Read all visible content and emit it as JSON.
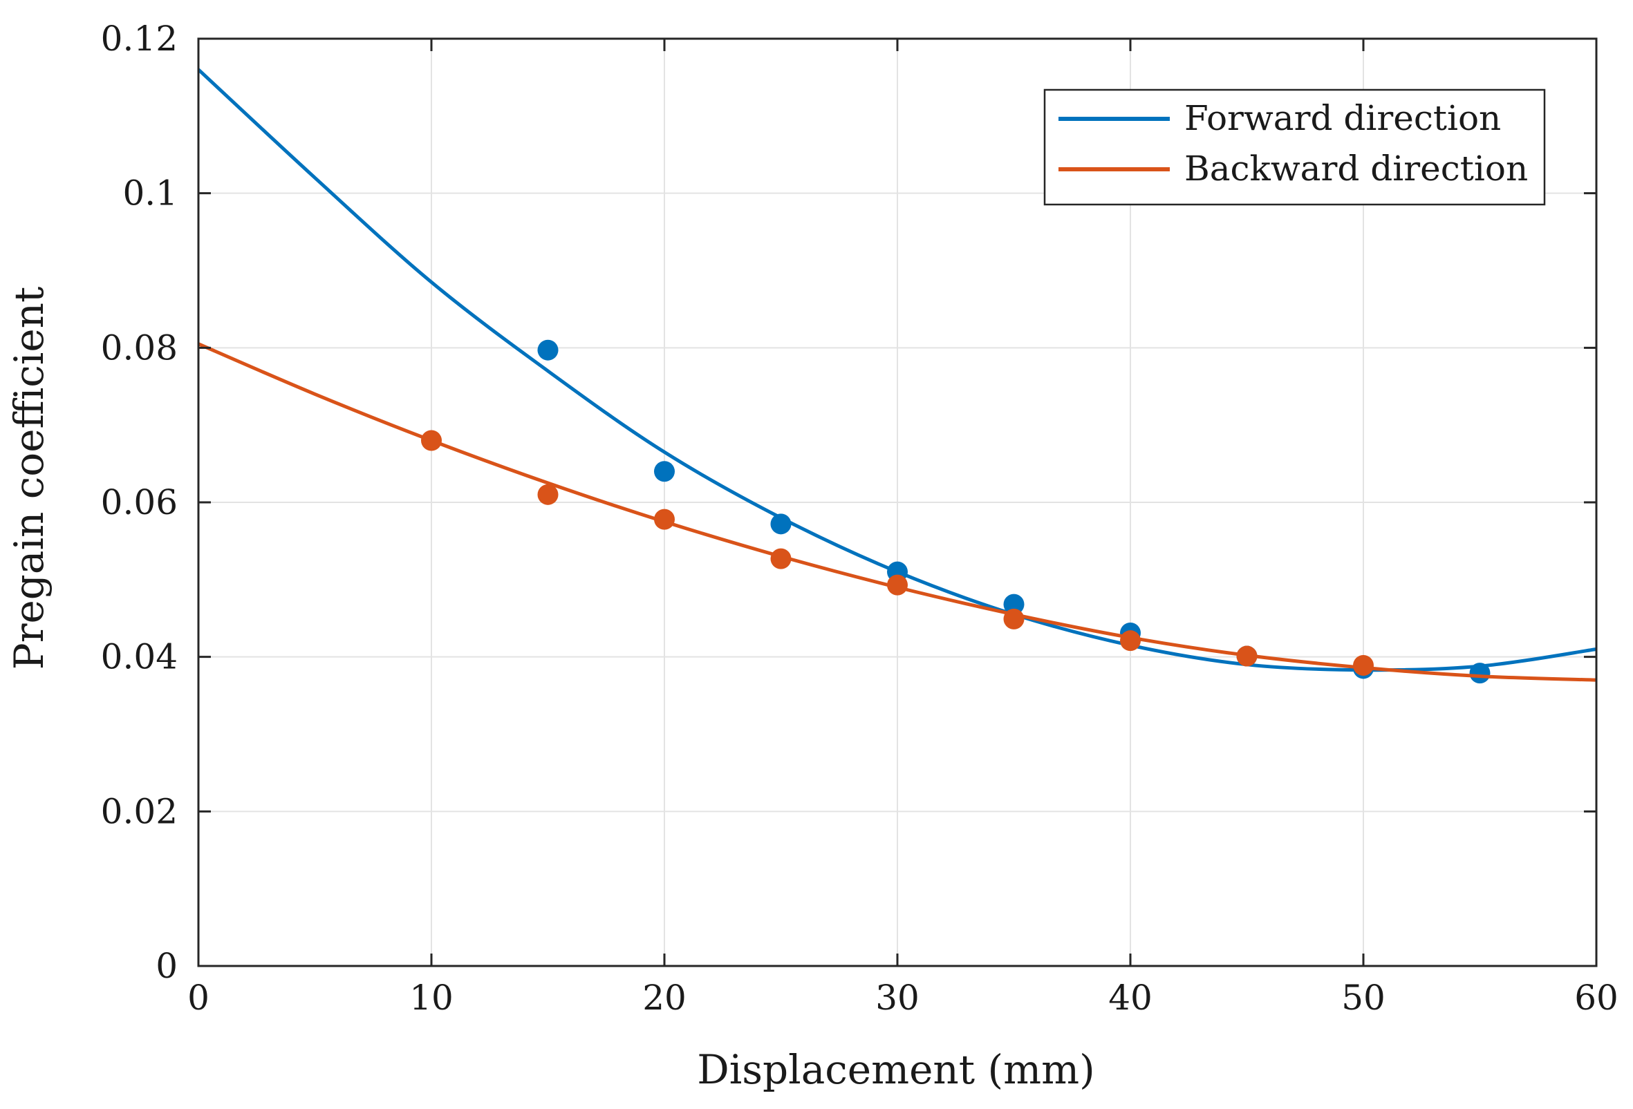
{
  "chart_data": {
    "type": "line",
    "title": "",
    "xlabel": "Displacement (mm)",
    "ylabel": "Pregain coefficient",
    "xlim": [
      0,
      60
    ],
    "ylim": [
      0,
      0.12
    ],
    "xticks": [
      0,
      10,
      20,
      30,
      40,
      50,
      60
    ],
    "xtick_labels": [
      "0",
      "10",
      "20",
      "30",
      "40",
      "50",
      "60"
    ],
    "yticks": [
      0,
      0.02,
      0.04,
      0.06,
      0.08,
      0.1,
      0.12
    ],
    "ytick_labels": [
      "0",
      "0.02",
      "0.04",
      "0.06",
      "0.08",
      "0.1",
      "0.12"
    ],
    "grid": true,
    "legend_position": "top-right",
    "series": [
      {
        "name": "Forward direction",
        "color": "#0072BD",
        "fit_x": [
          0,
          5,
          10,
          15,
          20,
          25,
          30,
          35,
          40,
          45,
          50,
          55,
          60
        ],
        "fit_y": [
          0.116,
          0.102,
          0.0885,
          0.077,
          0.0665,
          0.058,
          0.051,
          0.0455,
          0.0415,
          0.039,
          0.0383,
          0.0388,
          0.041
        ],
        "points": [
          {
            "x": 15,
            "y": 0.0797
          },
          {
            "x": 20,
            "y": 0.064
          },
          {
            "x": 25,
            "y": 0.0572
          },
          {
            "x": 30,
            "y": 0.051
          },
          {
            "x": 35,
            "y": 0.0468
          },
          {
            "x": 40,
            "y": 0.0431
          },
          {
            "x": 45,
            "y": 0.0401
          },
          {
            "x": 50,
            "y": 0.0385
          },
          {
            "x": 55,
            "y": 0.0379
          }
        ]
      },
      {
        "name": "Backward direction",
        "color": "#D95319",
        "fit_x": [
          0,
          5,
          10,
          15,
          20,
          25,
          30,
          35,
          40,
          45,
          50,
          55,
          60
        ],
        "fit_y": [
          0.0805,
          0.074,
          0.068,
          0.0625,
          0.0575,
          0.053,
          0.049,
          0.0455,
          0.0425,
          0.0402,
          0.0386,
          0.0375,
          0.037
        ],
        "points": [
          {
            "x": 10,
            "y": 0.068
          },
          {
            "x": 15,
            "y": 0.061
          },
          {
            "x": 20,
            "y": 0.0578
          },
          {
            "x": 25,
            "y": 0.0527
          },
          {
            "x": 30,
            "y": 0.0493
          },
          {
            "x": 35,
            "y": 0.0449
          },
          {
            "x": 40,
            "y": 0.0421
          },
          {
            "x": 45,
            "y": 0.0401
          },
          {
            "x": 50,
            "y": 0.0389
          }
        ]
      }
    ]
  }
}
